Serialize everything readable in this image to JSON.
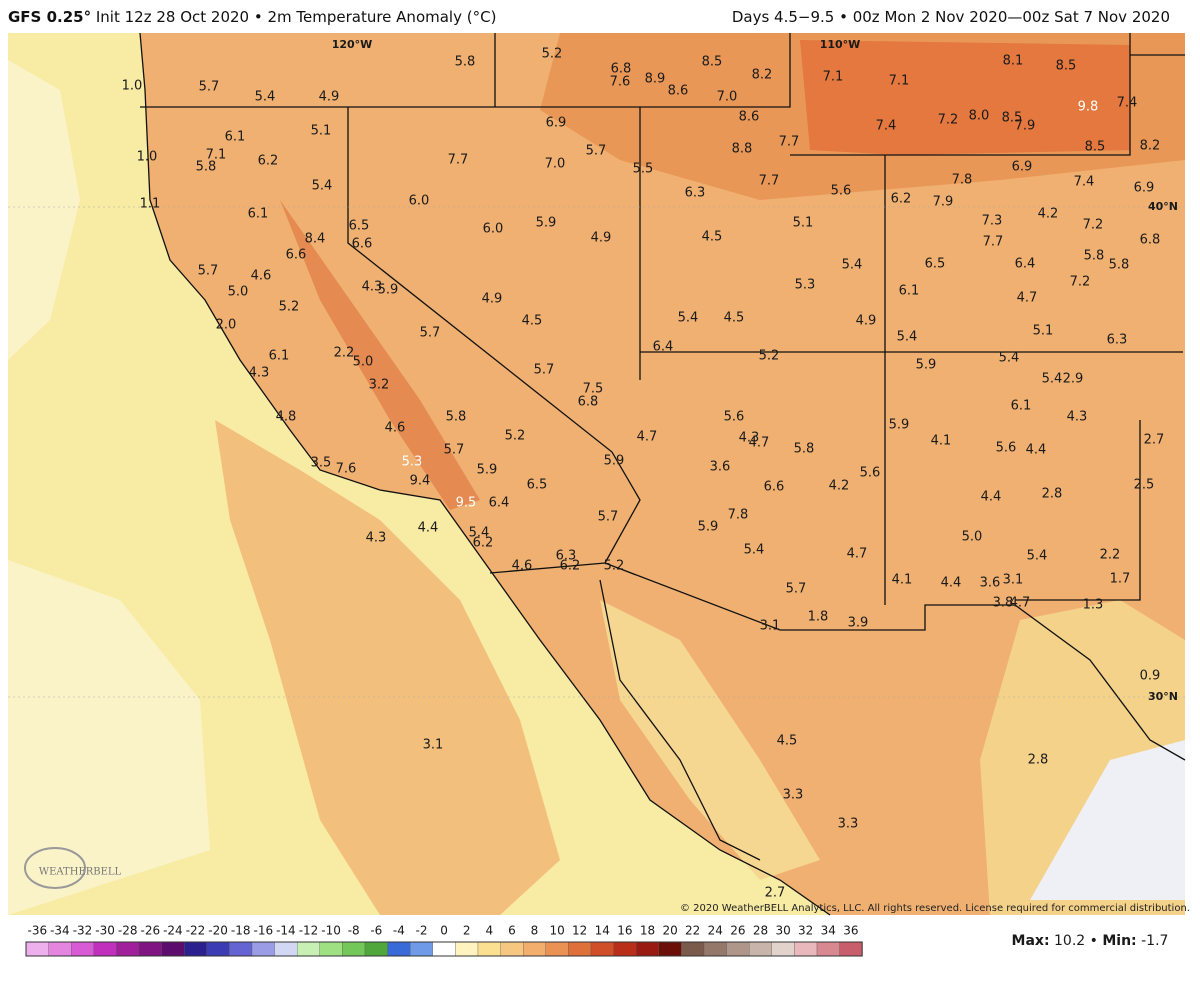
{
  "header": {
    "model": "GFS 0.25°",
    "init": "Init 12z 28 Oct 2020 • 2m Temperature Anomaly (°C)",
    "period": "Days 4.5−9.5 • 00z Mon 2 Nov 2020—00z Sat 7 Nov 2020"
  },
  "map": {
    "grid_labels": [
      "120°W",
      "110°W",
      "40°N",
      "30°N"
    ],
    "values": [
      "1.0",
      "5.7",
      "5.4",
      "4.9",
      "5.8",
      "5.2",
      "6.8",
      "7.6",
      "8.9",
      "8.6",
      "8.5",
      "8.2",
      "7.0",
      "7.1",
      "7.1",
      "8.1",
      "8.5",
      "7.4",
      "9.8",
      "5.1",
      "6.1",
      "7.1",
      "5.8",
      "6.2",
      "1.0",
      "6.9",
      "5.7",
      "7.7",
      "7.0",
      "8.6",
      "8.8",
      "7.7",
      "7.4",
      "7.2",
      "8.0",
      "8.5",
      "7.9",
      "8.5",
      "8.2",
      "5.5",
      "6.3",
      "7.7",
      "5.6",
      "6.2",
      "7.8",
      "7.9",
      "6.9",
      "7.4",
      "6.9",
      "1.1",
      "5.4",
      "6.1",
      "6.0",
      "6.5",
      "6.6",
      "8.4",
      "6.6",
      "6.0",
      "5.9",
      "4.9",
      "4.5",
      "5.1",
      "7.3",
      "7.7",
      "4.2",
      "7.2",
      "6.8",
      "5.7",
      "4.6",
      "5.0",
      "4.3",
      "5.9",
      "5.2",
      "4.9",
      "4.5",
      "5.4",
      "5.3",
      "6.5",
      "6.1",
      "6.4",
      "4.7",
      "5.8",
      "5.8",
      "7.2",
      "2.0",
      "5.7",
      "5.4",
      "4.5",
      "4.9",
      "5.4",
      "5.1",
      "6.3",
      "6.4",
      "5.2",
      "6.1",
      "2.2",
      "5.0",
      "4.3",
      "3.2",
      "5.7",
      "7.5",
      "6.8",
      "5.9",
      "5.4",
      "5.4",
      "2.9",
      "6.1",
      "4.3",
      "4.8",
      "5.8",
      "4.6",
      "5.2",
      "4.7",
      "5.6",
      "4.3",
      "4.7",
      "5.8",
      "5.9",
      "4.1",
      "5.6",
      "4.4",
      "2.7",
      "3.5",
      "7.6",
      "5.3",
      "5.7",
      "9.4",
      "5.9",
      "5.9",
      "3.6",
      "6.6",
      "4.2",
      "5.6",
      "2.5",
      "6.5",
      "9.5",
      "6.4",
      "2.8",
      "4.4",
      "7.8",
      "5.7",
      "5.9",
      "4.4",
      "4.3",
      "5.4",
      "6.2",
      "5.4",
      "4.7",
      "5.0",
      "5.4",
      "2.2",
      "6.3",
      "4.6",
      "6.2",
      "5.2",
      "4.1",
      "4.4",
      "3.6",
      "3.1",
      "1.7",
      "5.7",
      "1.8",
      "3.1",
      "3.9",
      "3.8",
      "4.7",
      "1.3",
      "0.9",
      "3.1",
      "4.5",
      "2.8",
      "3.3",
      "3.3",
      "2.7"
    ],
    "logo": "WEATHERBELL",
    "copyright": "© 2020 WeatherBELL Analytics, LLC. All rights reserved. License required for commercial distribution."
  },
  "colorbar": {
    "ticks": [
      -36,
      -34,
      -32,
      -30,
      -28,
      -26,
      -24,
      -22,
      -20,
      -18,
      -16,
      -14,
      -12,
      -10,
      -8,
      -6,
      -4,
      -2,
      0,
      2,
      4,
      6,
      8,
      10,
      12,
      14,
      16,
      18,
      20,
      22,
      24,
      26,
      28,
      30,
      32,
      34,
      36
    ],
    "colors": [
      "#eeb0ec",
      "#e485e0",
      "#d85ad4",
      "#c030bc",
      "#a0209c",
      "#801482",
      "#5c0c6c",
      "#2c208e",
      "#3c3cb4",
      "#6464d2",
      "#9a9ce6",
      "#d2d8f4",
      "#c8f0b4",
      "#9ee082",
      "#74c85a",
      "#50a83c",
      "#3a6ad8",
      "#6e9ae8",
      "#ffffff",
      "#fff3c0",
      "#fbe092",
      "#f6c780",
      "#f1ae6c",
      "#ea9154",
      "#e0703a",
      "#d04e28",
      "#b82e18",
      "#981a10",
      "#6a1008",
      "#7a5a4a",
      "#94786a",
      "#ae968a",
      "#c8b4aa",
      "#e2d2cc",
      "#e8b8bc",
      "#d88890",
      "#c85e6c"
    ]
  },
  "footer": {
    "max_label": "Max:",
    "max": 10.2,
    "sep": "•",
    "min_label": "Min:",
    "min": -1.7
  }
}
